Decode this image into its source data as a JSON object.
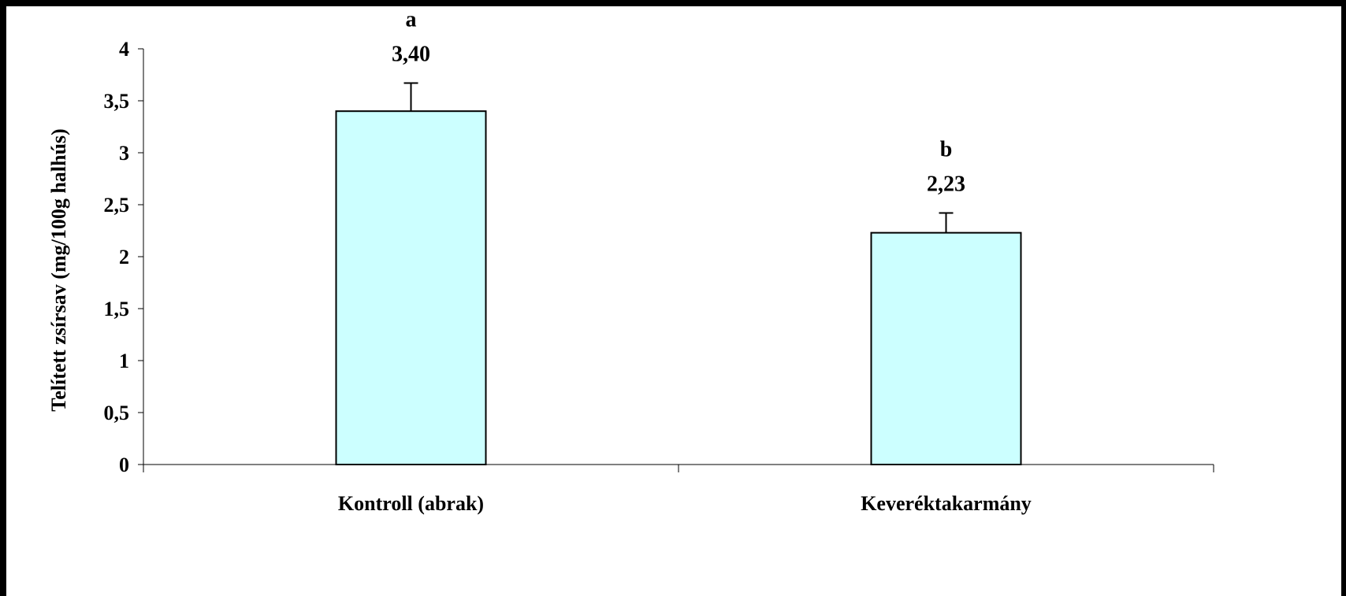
{
  "chart_data": {
    "type": "bar",
    "categories": [
      "Kontroll (abrak)",
      "Keveréktakarmány"
    ],
    "values": [
      3.4,
      2.23
    ],
    "value_labels": [
      "3,40",
      "2,23"
    ],
    "significance_letters": [
      "a",
      "b"
    ],
    "error_bars": [
      0.27,
      0.19
    ],
    "title": "",
    "xlabel": "",
    "ylabel": "Telített zsírsav (mg/100g halhús)",
    "ylim": [
      0,
      4
    ],
    "yticks": [
      0,
      0.5,
      1,
      1.5,
      2,
      2.5,
      3,
      3.5,
      4
    ],
    "ytick_labels": [
      "0",
      "0,5",
      "1",
      "1,5",
      "2",
      "2,5",
      "3",
      "3,5",
      "4"
    ],
    "grid": false,
    "legend": "none",
    "bar_color": "#CCFFFF",
    "frame_color": "#000000",
    "background": "#FFFFFF"
  }
}
